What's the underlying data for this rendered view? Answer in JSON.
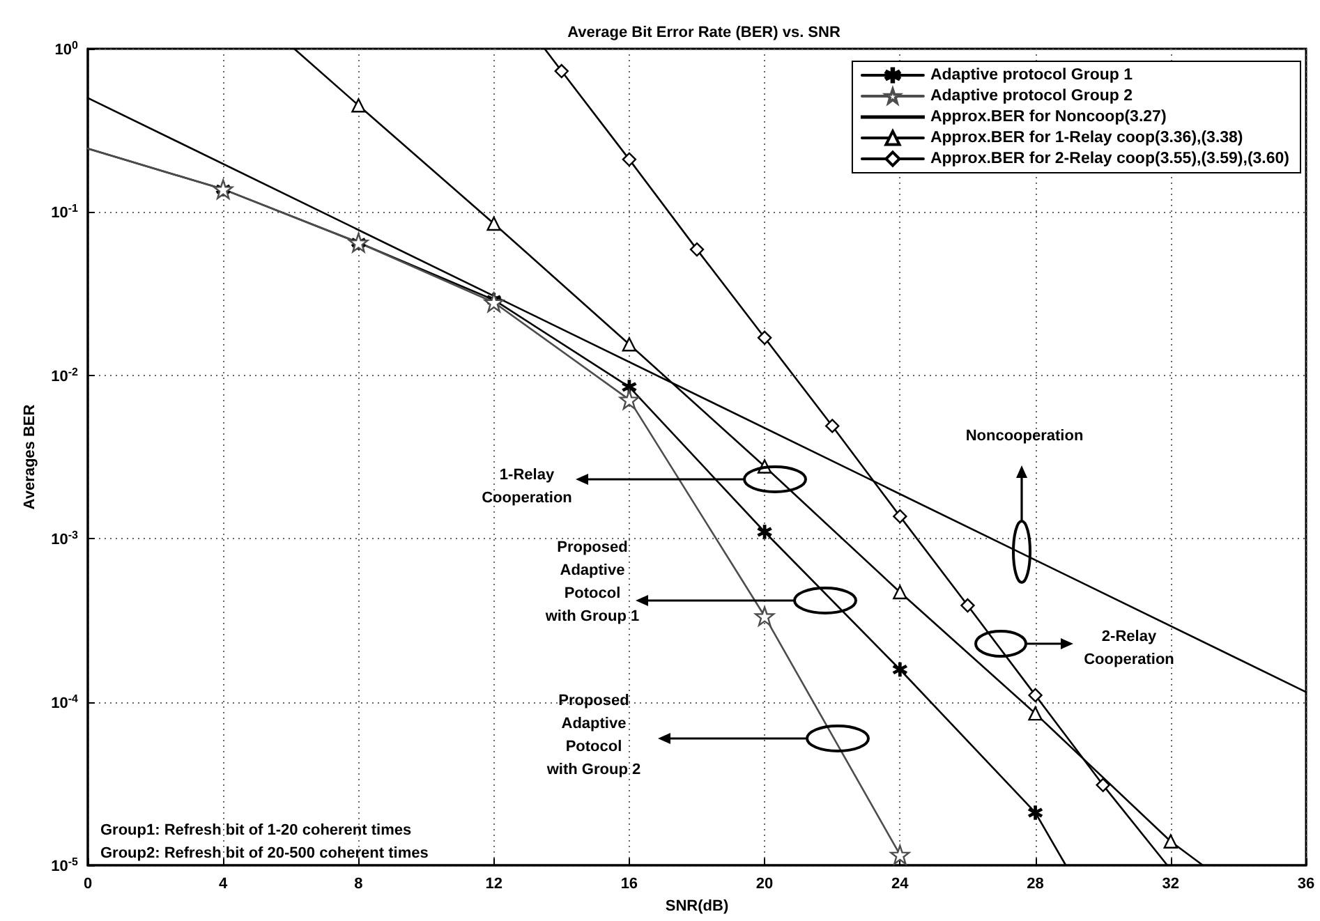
{
  "chart_data": {
    "type": "line",
    "title": "Average Bit Error Rate (BER) vs. SNR",
    "xlabel": "SNR(dB)",
    "ylabel": "Averages BER",
    "xlim": [
      0,
      36
    ],
    "xticks": [
      0,
      4,
      8,
      12,
      16,
      20,
      24,
      28,
      32,
      36
    ],
    "ylim": [
      1e-05,
      1
    ],
    "yticks": [
      {
        "value": 1,
        "label": "10$^{0}$"
      },
      {
        "value": 0.1,
        "label": "10$^{-1}$"
      },
      {
        "value": 0.01,
        "label": "10$^{-2}$"
      },
      {
        "value": 0.001,
        "label": "10$^{-3}$"
      },
      {
        "value": 0.0001,
        "label": "10$^{-4}$"
      },
      {
        "value": 1e-05,
        "label": "10$^{-5}$"
      }
    ],
    "log": "y",
    "grid": true,
    "legend": "top right",
    "series": [
      {
        "name": "Adaptive protocol Group 1",
        "color": "#000000",
        "marker": "cross",
        "x": [
          0,
          4,
          8,
          12,
          16,
          20,
          24,
          28,
          28.9
        ],
        "values": [
          0.245,
          0.138,
          0.065,
          0.029,
          0.0085,
          0.0011,
          0.000158,
          2.1e-05,
          1e-05
        ]
      },
      {
        "name": "Adaptive protocol Group 2",
        "color": "#4d4d4d",
        "marker": "star",
        "x": [
          0,
          4,
          8,
          12,
          16,
          20,
          24
        ],
        "values": [
          0.245,
          0.138,
          0.065,
          0.028,
          0.0071,
          0.000335,
          1.16e-05
        ]
      },
      {
        "name": "Approx.BER for Noncoop(3.27)",
        "color": "#000000",
        "marker": "none",
        "x": [
          0,
          36
        ],
        "values": [
          0.5,
          0.000115
        ]
      },
      {
        "name": "Approx.BER for 1-Relay coop(3.36),(3.38)",
        "color": "#000000",
        "marker": "triangle",
        "x": [
          6.1,
          8,
          12,
          16,
          20,
          24,
          28,
          32,
          32.95
        ],
        "values": [
          1,
          0.45,
          0.085,
          0.0155,
          0.00277,
          0.00047,
          8.5e-05,
          1.4e-05,
          1e-05
        ]
      },
      {
        "name": "Approx.BER for 2-Relay coop(3.55),(3.59),(3.60)",
        "color": "#000000",
        "marker": "diamond",
        "x": [
          13.5,
          14,
          16,
          18,
          20,
          22,
          24,
          26,
          28,
          30,
          31.9
        ],
        "values": [
          1,
          0.73,
          0.21,
          0.059,
          0.017,
          0.0049,
          0.00137,
          0.00039,
          0.00011,
          3.1e-05,
          1e-05
        ]
      }
    ],
    "annotations": [
      "1-Relay\nCooperation",
      "Proposed\nAdaptive\nPotocol\nwith Group 1",
      "Proposed\nAdaptive\nPotocol\nwith Group 2",
      "Noncooperation",
      "2-Relay\nCooperation",
      "Group1: Refresh bit of  1-20 coherent times",
      "Group2: Refresh bit of 20-500 coherent times"
    ]
  }
}
